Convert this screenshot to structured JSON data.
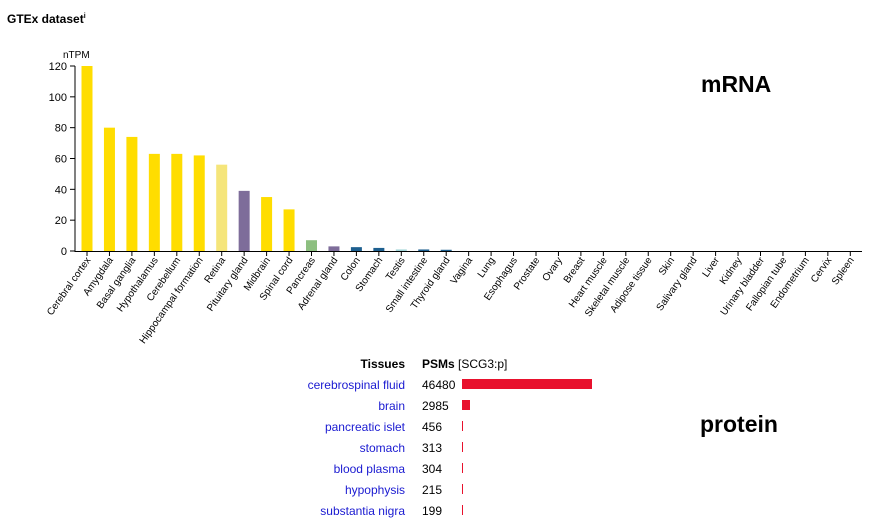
{
  "dataset": {
    "title": "GTEx dataset",
    "info_mark": "i"
  },
  "labels": {
    "mrna": "mRNA",
    "protein": "protein"
  },
  "colors": {
    "brain": "#ffdd00",
    "retina": "#f5e57a",
    "pituitary": "#7e6d9a",
    "pancreas": "#8dbf80",
    "gut": "#1d5f8f",
    "testis": "#9fd3d6",
    "thyroid": "#1d5f8f",
    "protein_bar": "#e8112d",
    "link": "#1a1ad1"
  },
  "chart_data": {
    "type": "bar",
    "ylabel": "nTPM",
    "ylim": [
      0,
      120
    ],
    "yticks": [
      0,
      20,
      40,
      60,
      80,
      100,
      120
    ],
    "categories": [
      "Cerebral cortex",
      "Amygdala",
      "Basal ganglia",
      "Hypothalamus",
      "Cerebellum",
      "Hippocampal formation",
      "Retina",
      "Pituitary gland",
      "Midbrain",
      "Spinal cord",
      "Pancreas",
      "Adrenal gland",
      "Colon",
      "Stomach",
      "Testis",
      "Small intestine",
      "Thyroid gland",
      "Vagina",
      "Lung",
      "Esophagus",
      "Prostate",
      "Ovary",
      "Breast",
      "Heart muscle",
      "Skeletal muscle",
      "Adipose tissue",
      "Skin",
      "Salivary gland",
      "Liver",
      "Kidney",
      "Urinary bladder",
      "Fallopian tube",
      "Endometrium",
      "Cervix",
      "Spleen"
    ],
    "values": [
      120,
      80,
      74,
      63,
      63,
      62,
      56,
      39,
      35,
      27,
      7,
      3,
      2.5,
      2,
      1,
      1,
      0.8,
      0,
      0,
      0,
      0,
      0,
      0,
      0,
      0,
      0,
      0,
      0,
      0,
      0,
      0,
      0,
      0,
      0,
      0
    ],
    "bar_colors": [
      "#ffdd00",
      "#ffdd00",
      "#ffdd00",
      "#ffdd00",
      "#ffdd00",
      "#ffdd00",
      "#f5e57a",
      "#7e6d9a",
      "#ffdd00",
      "#ffdd00",
      "#8dbf80",
      "#7e6d9a",
      "#1d5f8f",
      "#1d5f8f",
      "#9fd3d6",
      "#1d5f8f",
      "#1d5f8f",
      "#ffdd00",
      "#ffdd00",
      "#ffdd00",
      "#ffdd00",
      "#ffdd00",
      "#ffdd00",
      "#ffdd00",
      "#ffdd00",
      "#ffdd00",
      "#ffdd00",
      "#ffdd00",
      "#ffdd00",
      "#ffdd00",
      "#ffdd00",
      "#ffdd00",
      "#ffdd00",
      "#ffdd00",
      "#ffdd00"
    ]
  },
  "protein": {
    "headers": {
      "tissue": "Tissues",
      "psm": "PSMs",
      "psm_suffix": " [SCG3:p]"
    },
    "max_value": 46480,
    "rows": [
      {
        "tissue": "cerebrospinal fluid",
        "value": 46480
      },
      {
        "tissue": "brain",
        "value": 2985
      },
      {
        "tissue": "pancreatic islet",
        "value": 456
      },
      {
        "tissue": "stomach",
        "value": 313
      },
      {
        "tissue": "blood plasma",
        "value": 304
      },
      {
        "tissue": "hypophysis",
        "value": 215
      },
      {
        "tissue": "substantia nigra",
        "value": 199
      }
    ]
  }
}
